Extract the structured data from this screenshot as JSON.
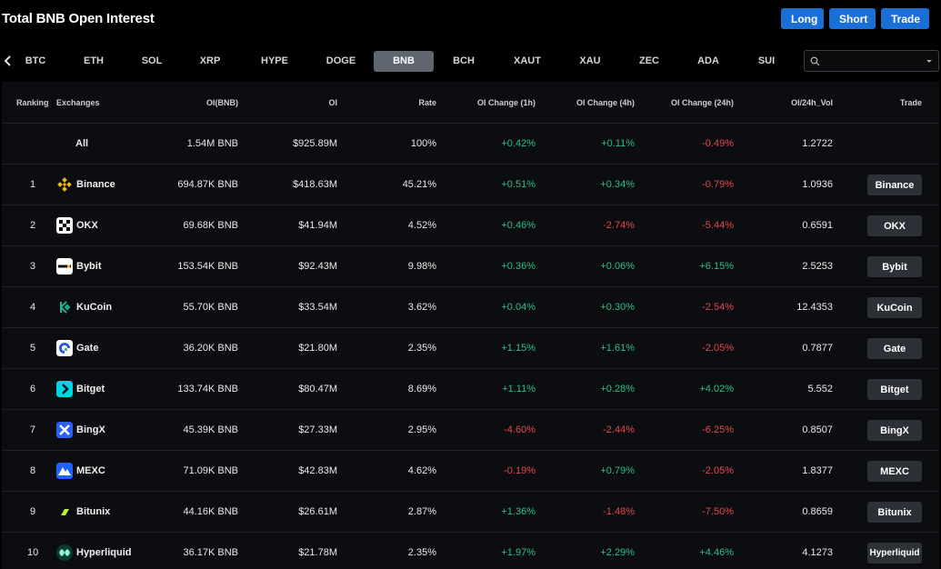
{
  "header": {
    "title": "Total BNB Open Interest",
    "actions": {
      "long": "Long",
      "short": "Short",
      "trade": "Trade"
    }
  },
  "tabs": [
    "BTC",
    "ETH",
    "SOL",
    "XRP",
    "HYPE",
    "DOGE",
    "BNB",
    "BCH",
    "XAUT",
    "XAU",
    "ZEC",
    "ADA",
    "SUI"
  ],
  "active_tab": "BNB",
  "search": {
    "value": "",
    "placeholder": ""
  },
  "colors": {
    "positive": "#2fbf85",
    "negative": "#e5484d",
    "accent": "#1a6fd6",
    "active_tab": "#5f6670"
  },
  "table": {
    "columns": [
      "Ranking",
      "Exchanges",
      "OI(BNB)",
      "OI",
      "Rate",
      "OI Change (1h)",
      "OI Change (4h)",
      "OI Change (24h)",
      "OI/24h_Vol",
      "Trade"
    ],
    "all_row": {
      "label": "All",
      "oi_bnb": "1.54M BNB",
      "oi": "$925.89M",
      "rate": "100%",
      "ch1h": "+0.42%",
      "ch4h": "+0.11%",
      "ch24h": "-0.49%",
      "vol": "1.2722"
    },
    "rows": [
      {
        "rank": "1",
        "name": "Binance",
        "icon": "binance-icon",
        "oi_bnb": "694.87K BNB",
        "oi": "$418.63M",
        "rate": "45.21%",
        "ch1h": "+0.51%",
        "ch4h": "+0.34%",
        "ch24h": "-0.79%",
        "vol": "1.0936",
        "trade": "Binance"
      },
      {
        "rank": "2",
        "name": "OKX",
        "icon": "okx-icon",
        "oi_bnb": "69.68K BNB",
        "oi": "$41.94M",
        "rate": "4.52%",
        "ch1h": "+0.46%",
        "ch4h": "-2.74%",
        "ch24h": "-5.44%",
        "vol": "0.6591",
        "trade": "OKX"
      },
      {
        "rank": "3",
        "name": "Bybit",
        "icon": "bybit-icon",
        "oi_bnb": "153.54K BNB",
        "oi": "$92.43M",
        "rate": "9.98%",
        "ch1h": "+0.36%",
        "ch4h": "+0.06%",
        "ch24h": "+6.15%",
        "vol": "2.5253",
        "trade": "Bybit"
      },
      {
        "rank": "4",
        "name": "KuCoin",
        "icon": "kucoin-icon",
        "oi_bnb": "55.70K BNB",
        "oi": "$33.54M",
        "rate": "3.62%",
        "ch1h": "+0.04%",
        "ch4h": "+0.30%",
        "ch24h": "-2.54%",
        "vol": "12.4353",
        "trade": "KuCoin"
      },
      {
        "rank": "5",
        "name": "Gate",
        "icon": "gate-icon",
        "oi_bnb": "36.20K BNB",
        "oi": "$21.80M",
        "rate": "2.35%",
        "ch1h": "+1.15%",
        "ch4h": "+1.61%",
        "ch24h": "-2.05%",
        "vol": "0.7877",
        "trade": "Gate"
      },
      {
        "rank": "6",
        "name": "Bitget",
        "icon": "bitget-icon",
        "oi_bnb": "133.74K BNB",
        "oi": "$80.47M",
        "rate": "8.69%",
        "ch1h": "+1.11%",
        "ch4h": "+0.28%",
        "ch24h": "+4.02%",
        "vol": "5.552",
        "trade": "Bitget"
      },
      {
        "rank": "7",
        "name": "BingX",
        "icon": "bingx-icon",
        "oi_bnb": "45.39K BNB",
        "oi": "$27.33M",
        "rate": "2.95%",
        "ch1h": "-4.60%",
        "ch4h": "-2.44%",
        "ch24h": "-6.25%",
        "vol": "0.8507",
        "trade": "BingX"
      },
      {
        "rank": "8",
        "name": "MEXC",
        "icon": "mexc-icon",
        "oi_bnb": "71.09K BNB",
        "oi": "$42.83M",
        "rate": "4.62%",
        "ch1h": "-0.19%",
        "ch4h": "+0.79%",
        "ch24h": "-2.05%",
        "vol": "1.8377",
        "trade": "MEXC"
      },
      {
        "rank": "9",
        "name": "Bitunix",
        "icon": "bitunix-icon",
        "oi_bnb": "44.16K BNB",
        "oi": "$26.61M",
        "rate": "2.87%",
        "ch1h": "+1.36%",
        "ch4h": "-1.48%",
        "ch24h": "-7.50%",
        "vol": "0.8659",
        "trade": "Bitunix"
      },
      {
        "rank": "10",
        "name": "Hyperliquid",
        "icon": "hyperliquid-icon",
        "oi_bnb": "36.17K BNB",
        "oi": "$21.78M",
        "rate": "2.35%",
        "ch1h": "+1.97%",
        "ch4h": "+2.29%",
        "ch24h": "+4.46%",
        "vol": "4.1273",
        "trade": "Hyperliquid"
      }
    ]
  }
}
